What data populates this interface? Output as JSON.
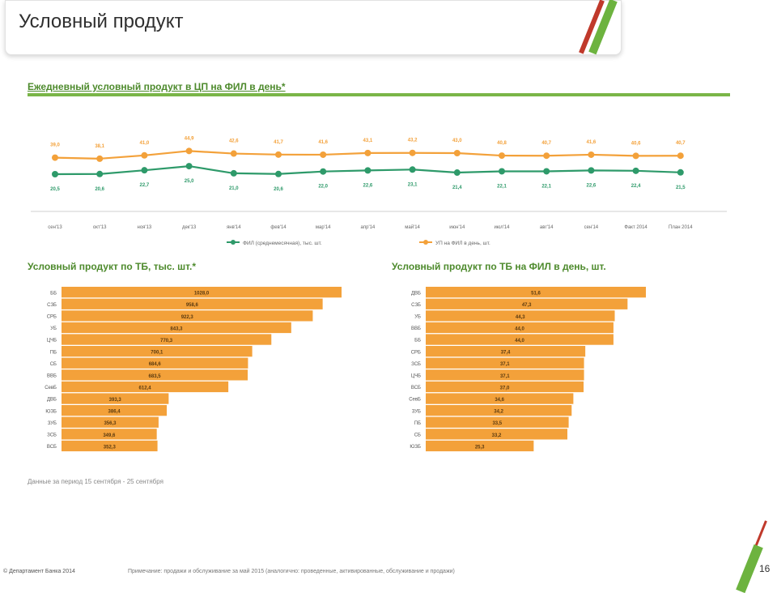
{
  "header": {
    "title": "Условный продукт"
  },
  "top_chart_title": "Ежедневный условный продукт в ЦП на ФИЛ в день*",
  "left_chart_title": "Условный продукт по ТБ, тыс. шт.*",
  "right_chart_title": "Условный продукт по ТБ на ФИЛ в день, шт.",
  "note": "Данные за период 15 сентября - 25 сентября",
  "footer": {
    "left": "© Департамент Банка 2014",
    "middle": "Примечание: продажи и обслуживание за май 2015 (аналогично: проведенные, активированные, обслуживание и продажи)",
    "page": "16"
  },
  "colors": {
    "orange": "#f3a13a",
    "green": "#2e9a6a",
    "accent": "#6db33f"
  },
  "chart_data": [
    {
      "type": "line",
      "categories": [
        "сен'13",
        "окт'13",
        "ноя'13",
        "дек'13",
        "янв'14",
        "фев'14",
        "мар'14",
        "апр'14",
        "май'14",
        "июн'14",
        "июл'14",
        "авг'14",
        "сен'14",
        "Факт 2014",
        "План 2014"
      ],
      "series": [
        {
          "name": "ФИЛ (среднемесячная), тыс. шт.",
          "color": "#2e9a6a",
          "values": [
            20.5,
            20.6,
            22.7,
            25.0,
            21.0,
            20.6,
            22.0,
            22.6,
            23.1,
            21.4,
            22.1,
            22.1,
            22.6,
            22.4,
            21.5
          ],
          "labels": [
            "20,5",
            "20,6",
            "22,7",
            "25,0",
            "21,0",
            "20,6",
            "22,0",
            "22,6",
            "23,1",
            "21,4",
            "22,1",
            "22,1",
            "22,6",
            "22,4",
            "21,5"
          ]
        },
        {
          "name": "УП на ФИЛ в день, шт.",
          "color": "#f3a13a",
          "values": [
            39.0,
            38.1,
            41.0,
            44.9,
            42.6,
            41.7,
            41.6,
            43.1,
            43.2,
            43.0,
            40.8,
            40.7,
            41.6,
            40.6,
            40.7
          ],
          "labels": [
            "39,0",
            "38,1",
            "41,0",
            "44,9",
            "42,6",
            "41,7",
            "41,6",
            "43,1",
            "43,2",
            "43,0",
            "40,8",
            "40,7",
            "41,6",
            "40,6",
            "40,7"
          ]
        }
      ],
      "title": "Ежедневный условный продукт в ЦП на ФИЛ в день*",
      "legend": "bottom"
    },
    {
      "type": "bar",
      "orientation": "horizontal",
      "categories": [
        "ББ",
        "СЗБ",
        "СРБ",
        "УБ",
        "ЦЧБ",
        "ПБ",
        "СБ",
        "ВВБ",
        "СевБ",
        "ДВБ",
        "ЮЗБ",
        "ЗУБ",
        "ЗСБ",
        "ВСБ"
      ],
      "values": [
        1028.0,
        958.6,
        922.3,
        843.3,
        770.3,
        700.1,
        684.6,
        683.5,
        612.4,
        393.3,
        386.4,
        356.3,
        349.6,
        352.3
      ],
      "labels": [
        "1028,0",
        "958,6",
        "922,3",
        "843,3",
        "770,3",
        "700,1",
        "684,6",
        "683,5",
        "612,4",
        "393,3",
        "386,4",
        "356,3",
        "349,6",
        "352,3"
      ],
      "color": "#f3a13a",
      "title": "Условный продукт по ТБ, тыс. шт.*"
    },
    {
      "type": "bar",
      "orientation": "horizontal",
      "categories": [
        "ДВБ",
        "СЗБ",
        "УБ",
        "ВВБ",
        "ББ",
        "СРБ",
        "ЗСБ",
        "ЦЧБ",
        "ВСБ",
        "СевБ",
        "ЗУБ",
        "ПБ",
        "СБ",
        "ЮЗБ"
      ],
      "values": [
        51.6,
        47.3,
        44.3,
        44.0,
        44.0,
        37.4,
        37.1,
        37.1,
        37.0,
        34.6,
        34.2,
        33.5,
        33.2,
        25.3
      ],
      "labels": [
        "51,6",
        "47,3",
        "44,3",
        "44,0",
        "44,0",
        "37,4",
        "37,1",
        "37,1",
        "37,0",
        "34,6",
        "34,2",
        "33,5",
        "33,2",
        "25,3"
      ],
      "color": "#f3a13a",
      "title": "Условный продукт по ТБ на ФИЛ в день, шт."
    }
  ]
}
